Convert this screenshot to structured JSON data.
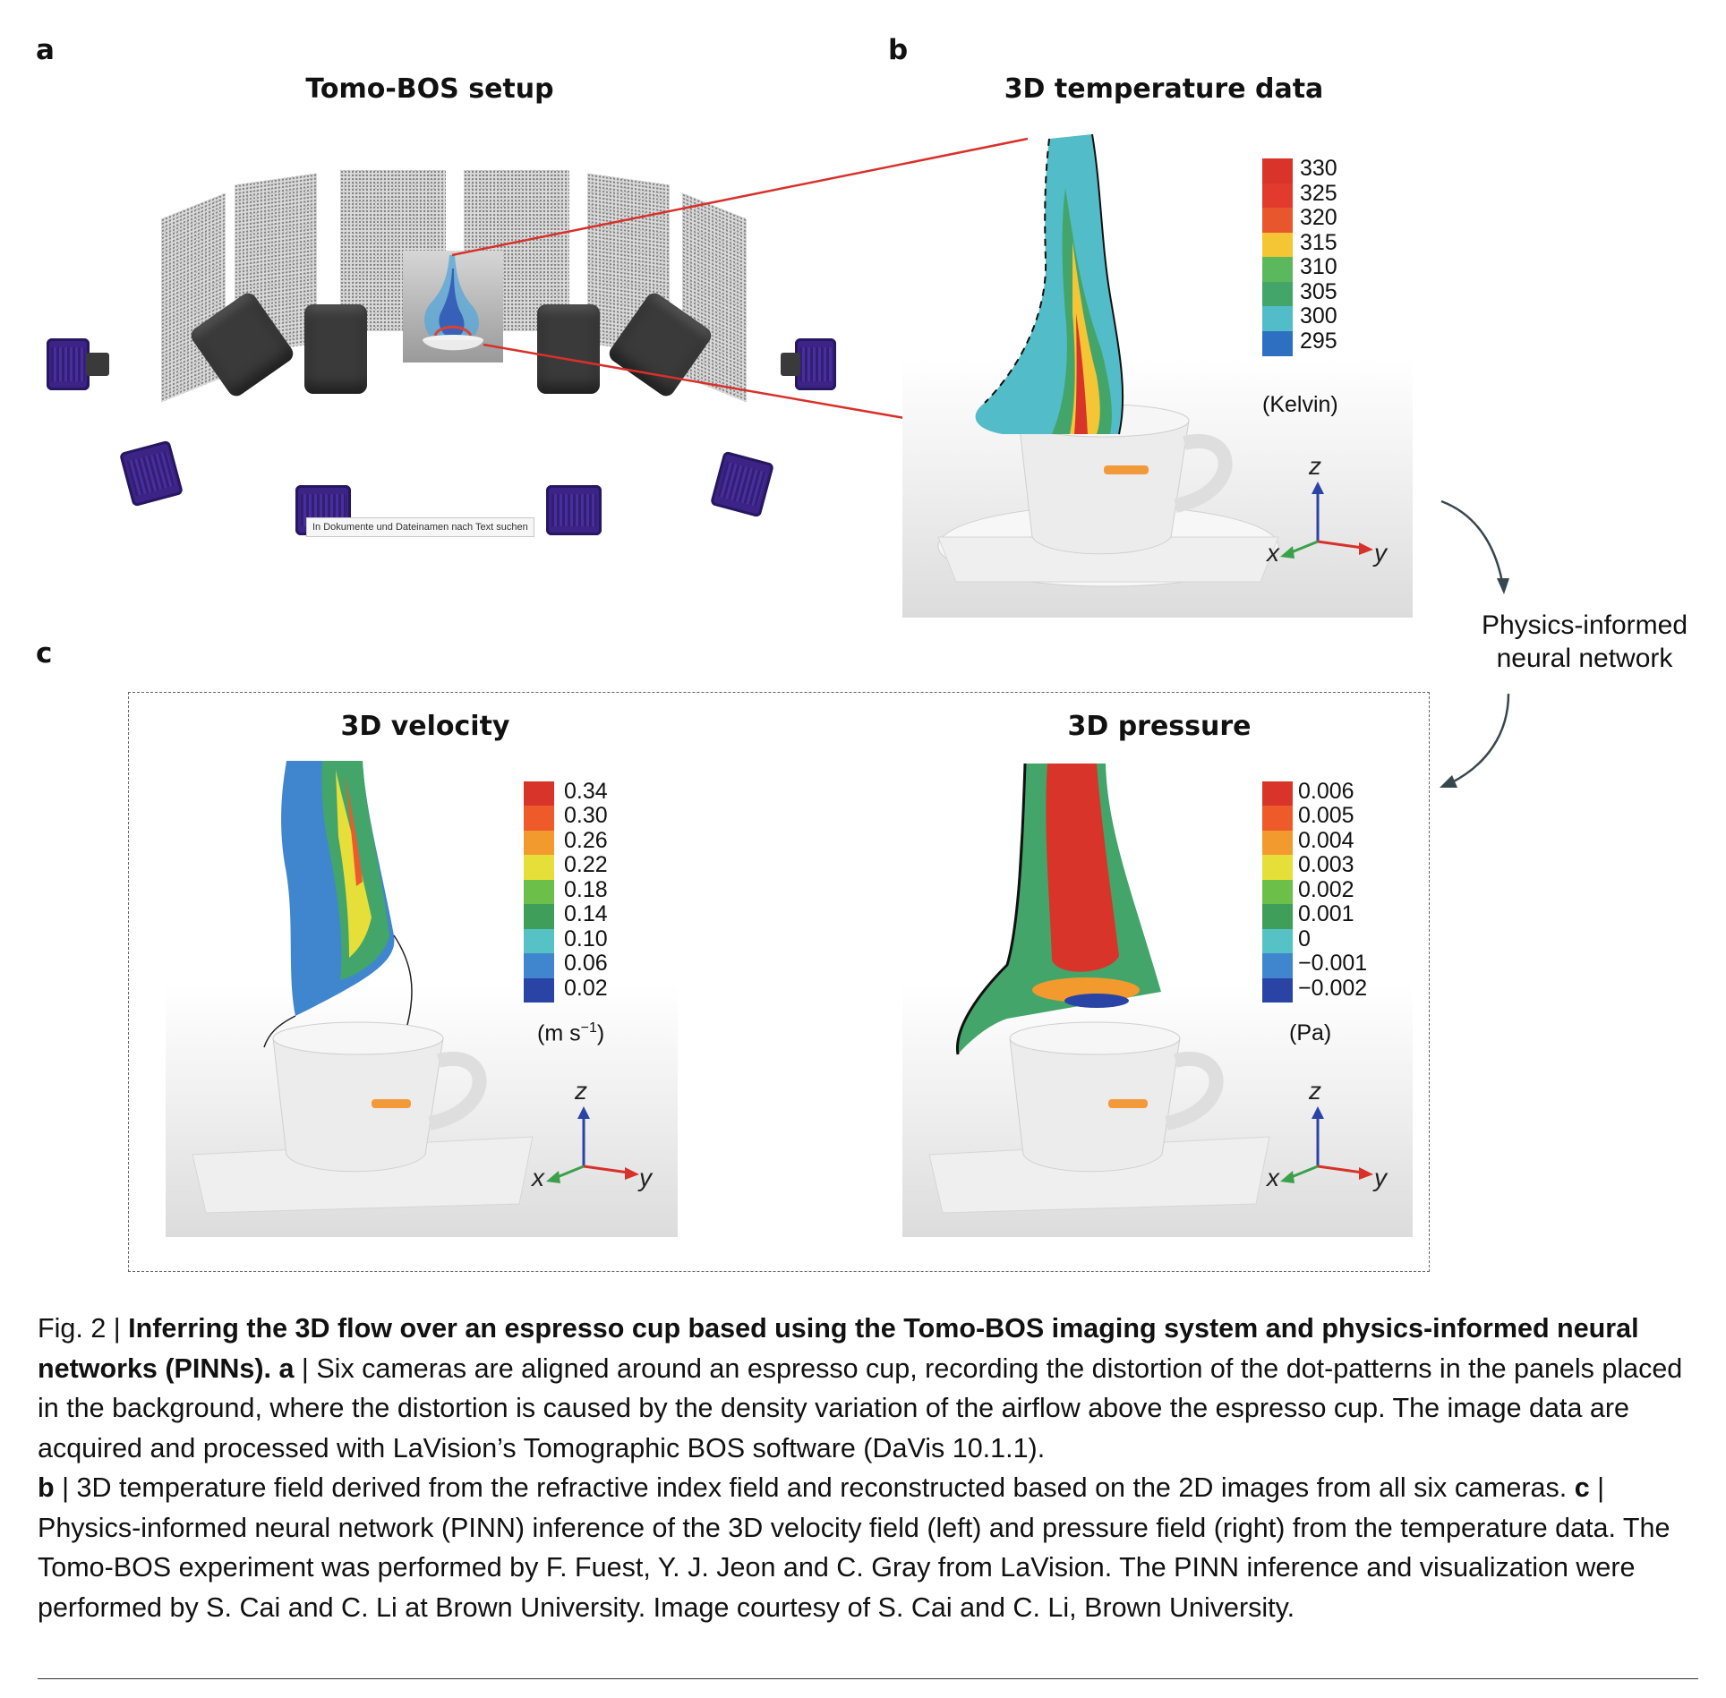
{
  "panel_labels": {
    "a": "a",
    "b": "b",
    "c": "c"
  },
  "titles": {
    "a": "Tomo-BOS setup",
    "b": "3D temperature data",
    "c_left": "3D velocity",
    "c_right": "3D pressure"
  },
  "tooltip": "In Dokumente und Dateinamen nach Text suchen",
  "pinn_label": {
    "line1": "Physics-informed",
    "line2": "neural network"
  },
  "temperature_bar": {
    "labels": [
      "330",
      "325",
      "320",
      "315",
      "310",
      "305",
      "300",
      "295"
    ],
    "unit": "(Kelvin)",
    "colors": [
      "#d8342a",
      "#e23a2c",
      "#e8562e",
      "#f4c534",
      "#5cb85c",
      "#43a56a",
      "#52bcc8",
      "#2f6fc1"
    ]
  },
  "velocity_bar": {
    "labels": [
      "0.34",
      "0.30",
      "0.26",
      "0.22",
      "0.18",
      "0.14",
      "0.10",
      "0.06",
      "0.02"
    ],
    "unit_main": "(m s",
    "unit_sup": "−1",
    "unit_end": ")",
    "colors": [
      "#d8342a",
      "#ee5a2a",
      "#f39a2f",
      "#e6df3a",
      "#6cc04a",
      "#3e9e5a",
      "#56c2c6",
      "#3f86cf",
      "#2a44a6"
    ]
  },
  "pressure_bar": {
    "labels": [
      "0.006",
      "0.005",
      "0.004",
      "0.003",
      "0.002",
      "0.001",
      "0",
      "−0.001",
      "−0.002"
    ],
    "unit": "(Pa)",
    "colors": [
      "#d8342a",
      "#ee5a2a",
      "#f39a2f",
      "#e6df3a",
      "#6cc04a",
      "#3e9e5a",
      "#56c2c6",
      "#3f86cf",
      "#2a44a6"
    ]
  },
  "axes": {
    "z": "z",
    "x": "x",
    "y": "y"
  },
  "caption": {
    "fig": "Fig. 2 | ",
    "title": "Inferring the 3D flow over an espresso cup based using the Tomo-BOS imaging system and physics-informed neural networks (PINNs).",
    "a_label": "a",
    "a_text": " | Six cameras are aligned around an espresso cup, recording the distortion of the dot-patterns in the panels placed in the background, where the distortion is caused by the density variation of the airflow above the espresso cup. The image data are acquired and processed with LaVision’s Tomographic BOS software (DaVis 10.1.1).",
    "b_label": "b",
    "b_text": " | 3D temperature field derived from the refractive index field and reconstructed based on the 2D images from all six cameras. ",
    "c_label": "c",
    "c_text": " | Physics-informed neural network (PINN) inference of the 3D velocity field (left) and pressure field (right) from the temperature data. The Tomo-BOS experiment was performed by F. Fuest, Y. J. Jeon and C. Gray from LaVision. The PINN inference and visualization were performed by S. Cai and C. Li at Brown University. Image courtesy of S. Cai and C. Li, Brown University."
  }
}
